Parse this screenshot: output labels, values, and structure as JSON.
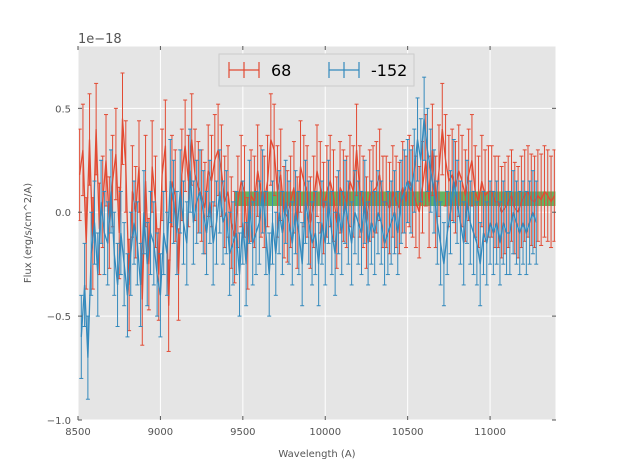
{
  "chart_data": {
    "type": "line",
    "title": "",
    "xlabel": "Wavelength (A)",
    "ylabel": "Flux (erg/s/cm^2/A)",
    "offset_label": "1e−18",
    "xlim": [
      8500,
      11400
    ],
    "ylim": [
      -1.0,
      0.8
    ],
    "xticks": [
      8500,
      9000,
      9500,
      10000,
      10500,
      11000
    ],
    "yticks": [
      0.5,
      0.0,
      -0.5,
      -1.0
    ],
    "xtick_labels": [
      "8500",
      "9000",
      "9500",
      "10000",
      "10500",
      "11000"
    ],
    "ytick_labels": [
      "0.5",
      "0.0",
      "−0.5",
      "−1.0"
    ],
    "grid": true,
    "legend_position": "top-center",
    "band": {
      "x_start": 9450,
      "x_end": 11400,
      "y_low": 0.03,
      "y_high": 0.1,
      "color": "#2ca02c"
    },
    "series": [
      {
        "name": "68",
        "color": "#e24a33",
        "x_start": 8510,
        "x_step": 20,
        "values": [
          0.18,
          0.3,
          -0.15,
          0.35,
          -0.15,
          0.4,
          -0.08,
          0.05,
          0.25,
          -0.05,
          0.15,
          0.28,
          -0.1,
          0.45,
          0.22,
          -0.35,
          0.1,
          0.0,
          0.22,
          -0.42,
          0.15,
          -0.25,
          0.22,
          0.05,
          -0.3,
          0.18,
          0.32,
          -0.45,
          0.15,
          0.08,
          -0.3,
          0.18,
          0.32,
          0.15,
          0.35,
          0.18,
          0.12,
          0.08,
          0.02,
          0.2,
          0.15,
          0.25,
          0.3,
          0.2,
          0.05,
          0.1,
          -0.05,
          -0.12,
          0.05,
          0.15,
          0.1,
          -0.15,
          0.08,
          0.05,
          0.2,
          0.1,
          0.05,
          0.15,
          0.35,
          0.3,
          0.1,
          0.18,
          0.0,
          -0.02,
          0.05,
          0.12,
          -0.05,
          0.22,
          0.15,
          0.1,
          -0.05,
          0.05,
          0.2,
          0.12,
          0.02,
          0.1,
          0.15,
          0.08,
          -0.05,
          0.12,
          0.08,
          0.05,
          0.15,
          0.1,
          0.3,
          0.1,
          0.05,
          -0.05,
          0.08,
          0.1,
          0.12,
          0.18,
          0.05,
          0.05,
          0.02,
          0.1,
          0.05,
          0.02,
          0.12,
          0.05,
          0.15,
          0.1,
          0.05,
          0.0,
          0.12,
          0.25,
          0.05,
          0.3,
          0.05,
          0.2,
          0.4,
          0.25,
          0.15,
          0.18,
          0.12,
          0.2,
          0.15,
          0.08,
          0.18,
          0.25,
          0.1,
          0.05,
          0.15,
          0.08,
          0.1,
          0.1,
          0.05,
          0.05,
          0.0,
          0.02,
          0.05,
          0.08,
          0.02,
          0.0,
          0.05,
          0.08,
          0.1,
          0.06,
          0.05,
          0.08,
          0.06,
          0.1,
          0.08,
          0.05,
          0.08
        ],
        "error": 0.22
      },
      {
        "name": "-152",
        "color": "#348abd",
        "x_start": 8520,
        "x_step": 20,
        "values": [
          -0.6,
          -0.35,
          -0.7,
          -0.2,
          -0.05,
          -0.3,
          0.05,
          -0.1,
          -0.15,
          0.1,
          -0.2,
          -0.35,
          -0.1,
          -0.25,
          -0.4,
          -0.2,
          -0.05,
          -0.15,
          -0.35,
          0.0,
          -0.25,
          -0.1,
          -0.15,
          -0.3,
          -0.4,
          -0.1,
          -0.2,
          0.15,
          0.05,
          -0.1,
          0.1,
          -0.05,
          -0.15,
          0.2,
          -0.05,
          0.05,
          0.1,
          0.0,
          -0.1,
          0.05,
          -0.15,
          -0.05,
          0.1,
          -0.05,
          0.0,
          -0.2,
          -0.15,
          -0.1,
          -0.3,
          -0.05,
          -0.25,
          0.05,
          -0.15,
          -0.1,
          -0.05,
          0.1,
          -0.1,
          -0.3,
          -0.05,
          -0.2,
          0.0,
          -0.1,
          0.05,
          -0.05,
          -0.15,
          0.0,
          -0.1,
          -0.25,
          0.05,
          -0.05,
          -0.15,
          -0.1,
          -0.25,
          -0.05,
          -0.15,
          0.05,
          -0.1,
          -0.2,
          0.0,
          -0.1,
          0.05,
          -0.05,
          -0.15,
          0.0,
          -0.05,
          -0.1,
          0.05,
          -0.15,
          -0.05,
          -0.1,
          0.0,
          -0.05,
          -0.15,
          -0.1,
          -0.05,
          0.0,
          -0.1,
          0.05,
          0.1,
          0.15,
          0.1,
          0.2,
          0.35,
          0.25,
          0.45,
          0.3,
          0.2,
          0.1,
          -0.05,
          -0.15,
          -0.25,
          -0.1,
          0.0,
          0.15,
          0.05,
          -0.05,
          -0.15,
          0.05,
          -0.05,
          -0.1,
          -0.15,
          -0.25,
          -0.1,
          -0.15,
          -0.05,
          -0.1,
          -0.05,
          -0.15,
          -0.05,
          -0.1,
          -0.1,
          0.0,
          -0.05,
          -0.1,
          -0.05,
          -0.1,
          -0.05,
          0.0,
          -0.05
        ],
        "error": 0.2
      }
    ]
  }
}
